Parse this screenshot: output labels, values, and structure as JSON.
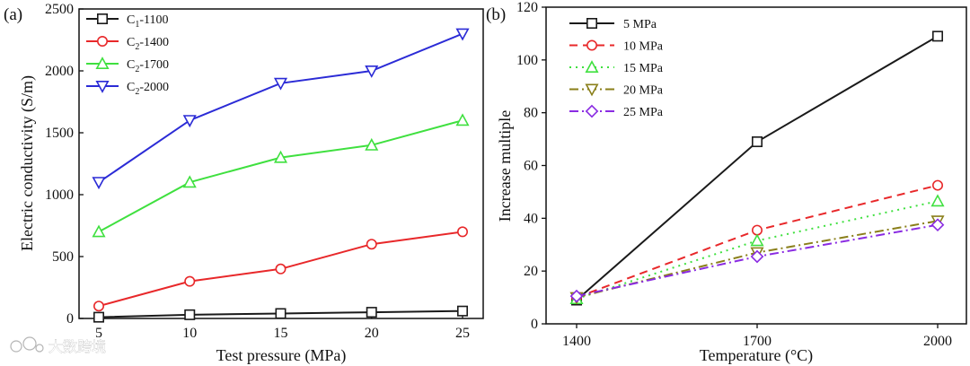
{
  "watermark": "大数跨境",
  "chart_data": [
    {
      "type": "line",
      "panel_label": "(a)",
      "xlabel": "Test pressure (MPa)",
      "ylabel": "Electric conductivity (S/m)",
      "x": [
        5,
        10,
        15,
        20,
        25
      ],
      "x_ticks": [
        "5",
        "10",
        "15",
        "20",
        "25"
      ],
      "y_ticks": [
        "0",
        "500",
        "1000",
        "1500",
        "2000",
        "2500"
      ],
      "ylim": [
        0,
        2500
      ],
      "legend_position": "top-left",
      "series": [
        {
          "name": "C1-1100",
          "sub_base": "C",
          "sub": "1",
          "suffix": "-1100",
          "color": "#1a1a1a",
          "marker": "square",
          "dash": "solid",
          "values": [
            10,
            30,
            40,
            50,
            60
          ]
        },
        {
          "name": "C2-1400",
          "sub_base": "C",
          "sub": "2",
          "suffix": "-1400",
          "color": "#e8282a",
          "marker": "circle",
          "dash": "solid",
          "values": [
            100,
            300,
            400,
            600,
            700
          ]
        },
        {
          "name": "C2-1700",
          "sub_base": "C",
          "sub": "2",
          "suffix": "-1700",
          "color": "#3fe03f",
          "marker": "triangle-up",
          "dash": "solid",
          "values": [
            700,
            1100,
            1300,
            1400,
            1600
          ]
        },
        {
          "name": "C2-2000",
          "sub_base": "C",
          "sub": "2",
          "suffix": "-2000",
          "color": "#2b2bd6",
          "marker": "triangle-down",
          "dash": "solid",
          "values": [
            1100,
            1600,
            1900,
            2000,
            2300
          ]
        }
      ]
    },
    {
      "type": "line",
      "panel_label": "(b)",
      "xlabel": "Temperature (°C)",
      "ylabel": "Increase multiple",
      "categories": [
        "1400",
        "1700",
        "2000"
      ],
      "y_ticks": [
        "0",
        "20",
        "40",
        "60",
        "80",
        "100",
        "120"
      ],
      "ylim": [
        0,
        120
      ],
      "legend_position": "top-left",
      "series": [
        {
          "name": "5 MPa",
          "color": "#1a1a1a",
          "marker": "square",
          "dash": "solid",
          "values": [
            9,
            69,
            109
          ]
        },
        {
          "name": "10 MPa",
          "color": "#e8282a",
          "marker": "circle",
          "dash": "dashed",
          "values": [
            10,
            35.5,
            52.5
          ]
        },
        {
          "name": "15 MPa",
          "color": "#3fe03f",
          "marker": "triangle-up",
          "dash": "dotted",
          "values": [
            9.5,
            31.5,
            46.5
          ]
        },
        {
          "name": "20 MPa",
          "color": "#8a7f1a",
          "marker": "triangle-down",
          "dash": "dashdot",
          "values": [
            10,
            27,
            39
          ]
        },
        {
          "name": "25 MPa",
          "color": "#8a2be2",
          "marker": "diamond",
          "dash": "dashdot",
          "values": [
            10.5,
            25.5,
            37.5
          ]
        }
      ]
    }
  ]
}
